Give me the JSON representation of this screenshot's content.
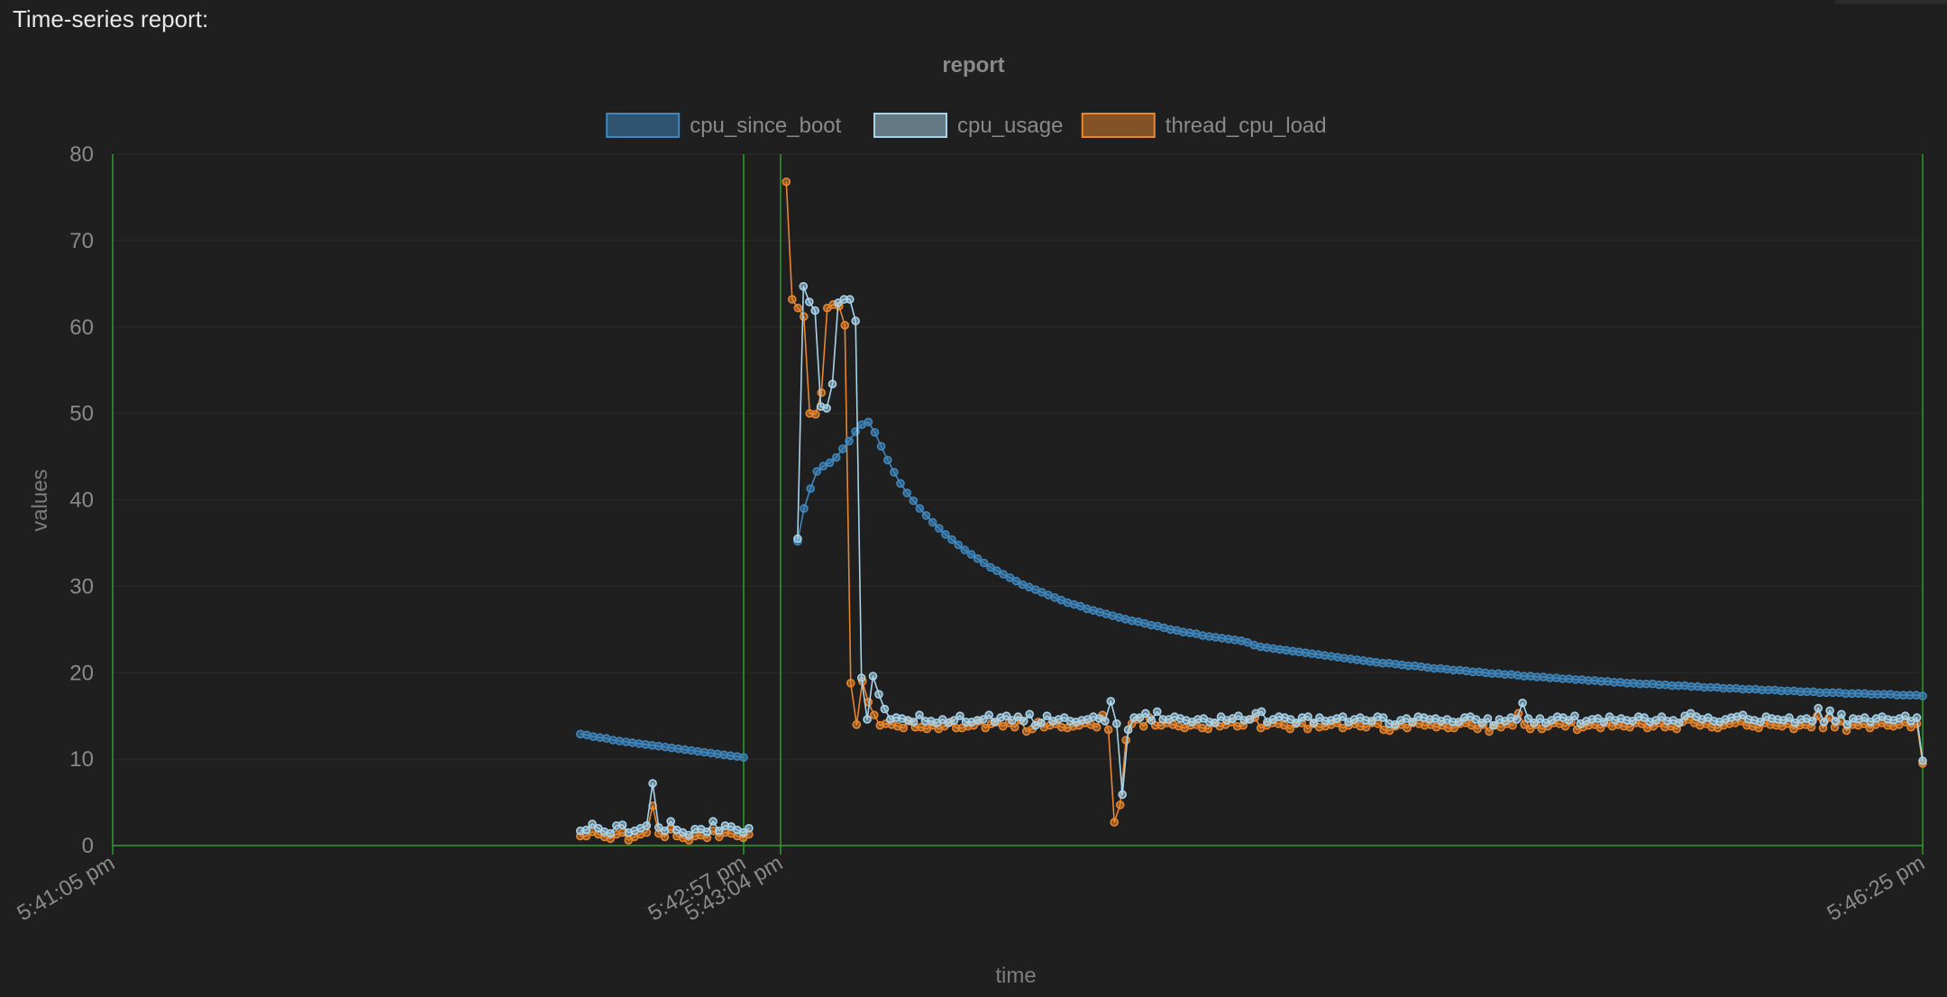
{
  "header": {
    "title": "Time-series report:"
  },
  "colors": {
    "background": "#1f1f1f",
    "grid": "#2c2c2c",
    "axis_green": "#2aa02a",
    "text_muted": "#8a8a8a",
    "cpu_since_boot": "#3f88bf",
    "cpu_usage": "#a8d3ea",
    "thread_cpu_load": "#e8862e"
  },
  "chart_data": {
    "type": "line",
    "title": "report",
    "xlabel": "time",
    "ylabel": "values",
    "ylim": [
      0,
      80
    ],
    "yticks": [
      0,
      10,
      20,
      30,
      40,
      50,
      60,
      70,
      80
    ],
    "xrange": [
      "5:41:05 pm",
      "5:46:25 pm"
    ],
    "xticks": [
      "5:41:05 pm",
      "5:42:57 pm",
      "5:43:04 pm",
      "5:46:25 pm"
    ],
    "grid": true,
    "legend_position": "top-center",
    "gap": {
      "from": "5:42:57 pm",
      "to": "5:43:04 pm"
    },
    "series": [
      {
        "name": "cpu_since_boot",
        "color": "#3f88bf",
        "segments": [
          {
            "start": "5:42:28 pm",
            "end": "5:42:57 pm",
            "values": [
              12.9,
              12.8,
              12.6,
              12.5,
              12.4,
              12.2,
              12.1,
              12.0,
              11.9,
              11.8,
              11.7,
              11.6,
              11.5,
              11.4,
              11.3,
              11.2,
              11.1,
              11.0,
              10.9,
              10.8,
              10.7,
              10.6,
              10.5,
              10.4,
              10.3,
              10.2
            ]
          },
          {
            "start": "5:43:07 pm",
            "end": "5:46:25 pm",
            "values": [
              35.2,
              39.0,
              41.3,
              43.3,
              43.9,
              44.3,
              44.9,
              45.9,
              46.8,
              47.9,
              48.7,
              49.0,
              47.8,
              46.2,
              44.6,
              43.2,
              41.9,
              40.8,
              39.9,
              39.0,
              38.2,
              37.4,
              36.7,
              36.0,
              35.4,
              34.8,
              34.2,
              33.7,
              33.2,
              32.7,
              32.2,
              31.8,
              31.4,
              31.0,
              30.6,
              30.2,
              29.9,
              29.6,
              29.3,
              29.0,
              28.7,
              28.4,
              28.1,
              27.9,
              27.7,
              27.4,
              27.2,
              27.0,
              26.8,
              26.6,
              26.4,
              26.2,
              26.0,
              25.9,
              25.7,
              25.5,
              25.4,
              25.2,
              25.0,
              24.9,
              24.7,
              24.6,
              24.5,
              24.3,
              24.2,
              24.1,
              24.0,
              23.9,
              23.8,
              23.7,
              23.5,
              23.2,
              23.0,
              22.9,
              22.8,
              22.7,
              22.6,
              22.5,
              22.4,
              22.3,
              22.2,
              22.1,
              22.0,
              21.9,
              21.8,
              21.7,
              21.6,
              21.5,
              21.4,
              21.3,
              21.2,
              21.1,
              21.1,
              21.0,
              20.9,
              20.8,
              20.8,
              20.7,
              20.6,
              20.5,
              20.5,
              20.4,
              20.3,
              20.3,
              20.2,
              20.1,
              20.1,
              20.0,
              19.9,
              19.9,
              19.8,
              19.8,
              19.7,
              19.6,
              19.6,
              19.5,
              19.5,
              19.4,
              19.4,
              19.3,
              19.3,
              19.2,
              19.2,
              19.1,
              19.1,
              19.0,
              19.0,
              18.9,
              18.9,
              18.8,
              18.8,
              18.7,
              18.7,
              18.7,
              18.6,
              18.6,
              18.5,
              18.5,
              18.5,
              18.4,
              18.4,
              18.3,
              18.3,
              18.3,
              18.2,
              18.2,
              18.2,
              18.1,
              18.1,
              18.1,
              18.0,
              18.0,
              18.0,
              17.9,
              17.9,
              17.9,
              17.8,
              17.8,
              17.8,
              17.7,
              17.7,
              17.7,
              17.7,
              17.6,
              17.6,
              17.6,
              17.6,
              17.5,
              17.5,
              17.5,
              17.5,
              17.4,
              17.4,
              17.4,
              17.4,
              17.3
            ]
          }
        ]
      },
      {
        "name": "cpu_usage",
        "color": "#a8d3ea",
        "segments": [
          {
            "start": "5:42:28 pm",
            "end": "5:42:58 pm",
            "values": [
              1.7,
              1.8,
              2.5,
              2.0,
              1.6,
              1.4,
              2.3,
              2.4,
              1.5,
              1.7,
              2.0,
              2.3,
              7.2,
              2.1,
              1.7,
              2.8,
              1.8,
              1.5,
              1.2,
              1.9,
              1.9,
              1.6,
              2.8,
              1.7,
              2.3,
              2.2,
              1.8,
              1.5,
              2.0
            ]
          },
          {
            "start": "5:43:07 pm",
            "end": "5:46:25 pm",
            "values": [
              35.5,
              64.7,
              62.9,
              61.9,
              50.8,
              50.6,
              53.4,
              62.8,
              63.2,
              63.2,
              60.7,
              19.4,
              14.6,
              19.6,
              17.5,
              15.8,
              14.6,
              14.8,
              14.7,
              14.5,
              14.3,
              15.1,
              14.4,
              14.4,
              14.2,
              14.6,
              14.2,
              14.5,
              15.0,
              14.3,
              14.3,
              14.5,
              14.6,
              15.1,
              14.3,
              14.8,
              15.0,
              14.5,
              14.9,
              14.4,
              15.2,
              13.9,
              14.2,
              15.0,
              14.4,
              14.6,
              14.8,
              14.4,
              14.3,
              14.5,
              14.6,
              14.9,
              14.7,
              14.4,
              16.7,
              14.1,
              5.9,
              13.4,
              14.8,
              14.8,
              15.3,
              14.5,
              15.5,
              14.6,
              14.6,
              14.9,
              14.7,
              14.5,
              14.3,
              14.6,
              14.7,
              14.3,
              14.2,
              14.9,
              14.5,
              14.7,
              15.0,
              14.5,
              14.6,
              15.3,
              15.5,
              14.3,
              14.6,
              14.9,
              14.8,
              14.6,
              14.2,
              14.8,
              14.9,
              14.2,
              14.8,
              14.4,
              14.5,
              14.7,
              14.9,
              14.3,
              14.6,
              14.8,
              14.5,
              14.4,
              14.9,
              14.8,
              14.1,
              14.0,
              14.5,
              14.7,
              14.3,
              14.9,
              14.8,
              14.6,
              14.7,
              14.4,
              14.6,
              14.3,
              14.3,
              14.8,
              14.9,
              14.6,
              14.2,
              14.7,
              13.9,
              14.6,
              14.4,
              14.8,
              14.6,
              16.5,
              14.7,
              14.2,
              14.7,
              14.2,
              14.5,
              14.9,
              14.8,
              14.5,
              15.0,
              14.1,
              14.4,
              14.6,
              14.7,
              14.3,
              14.9,
              14.5,
              14.7,
              14.5,
              14.4,
              14.9,
              14.8,
              14.3,
              14.5,
              14.9,
              14.4,
              14.5,
              14.2,
              15.0,
              15.3,
              14.9,
              14.6,
              14.8,
              14.4,
              14.3,
              14.6,
              14.8,
              14.9,
              15.1,
              14.6,
              14.5,
              14.3,
              14.9,
              14.7,
              14.6,
              14.5,
              14.8,
              14.2,
              14.6,
              14.7,
              14.4,
              15.9,
              14.3,
              15.6,
              14.4,
              15.2,
              14.0,
              14.7,
              14.6,
              14.8,
              14.3,
              14.7,
              14.9,
              14.6,
              14.5,
              14.7,
              15.0,
              14.4,
              14.8,
              9.8
            ]
          }
        ]
      },
      {
        "name": "thread_cpu_load",
        "color": "#e8862e",
        "segments": [
          {
            "start": "5:42:28 pm",
            "end": "5:42:58 pm",
            "values": [
              1.1,
              1.1,
              1.6,
              1.3,
              1.0,
              0.8,
              1.3,
              1.5,
              0.6,
              1.0,
              1.3,
              1.5,
              4.6,
              1.4,
              1.0,
              1.9,
              1.1,
              0.9,
              0.6,
              1.1,
              1.2,
              0.9,
              1.7,
              1.0,
              1.5,
              1.4,
              1.1,
              0.9,
              1.3
            ]
          },
          {
            "start": "5:43:05 pm",
            "end": "5:46:25 pm",
            "values": [
              76.8,
              63.2,
              62.2,
              61.2,
              50.0,
              49.9,
              52.4,
              62.2,
              62.6,
              62.4,
              60.2,
              18.8,
              14.0,
              19.0,
              16.6,
              15.1,
              13.9,
              14.1,
              14.0,
              13.8,
              13.6,
              14.4,
              13.7,
              13.7,
              13.5,
              13.9,
              13.5,
              13.8,
              14.3,
              13.6,
              13.6,
              13.8,
              13.9,
              14.4,
              13.6,
              14.1,
              14.3,
              13.8,
              14.2,
              13.7,
              14.5,
              13.2,
              13.5,
              14.3,
              13.7,
              13.9,
              14.1,
              13.7,
              13.6,
              13.8,
              13.9,
              14.2,
              14.0,
              13.7,
              15.1,
              13.4,
              2.7,
              4.7,
              12.2,
              14.1,
              14.6,
              13.8,
              14.8,
              13.9,
              13.9,
              14.2,
              14.0,
              13.8,
              13.6,
              13.9,
              14.0,
              13.6,
              13.5,
              14.2,
              13.8,
              14.0,
              14.3,
              13.8,
              13.9,
              14.6,
              14.8,
              13.6,
              13.9,
              14.2,
              14.1,
              13.9,
              13.5,
              14.1,
              14.2,
              13.5,
              14.1,
              13.7,
              13.8,
              14.0,
              14.2,
              13.6,
              13.9,
              14.1,
              13.8,
              13.7,
              14.2,
              14.1,
              13.4,
              13.3,
              13.8,
              14.0,
              13.6,
              14.2,
              14.1,
              13.9,
              14.0,
              13.7,
              13.9,
              13.6,
              13.6,
              14.1,
              14.2,
              13.9,
              13.5,
              14.0,
              13.2,
              13.9,
              13.7,
              14.1,
              13.9,
              15.3,
              14.0,
              13.5,
              14.0,
              13.5,
              13.8,
              14.2,
              14.1,
              13.8,
              14.3,
              13.4,
              13.7,
              13.9,
              14.0,
              13.6,
              14.2,
              13.8,
              14.0,
              13.8,
              13.7,
              14.2,
              14.1,
              13.6,
              13.8,
              14.2,
              13.7,
              13.8,
              13.5,
              14.3,
              14.6,
              14.2,
              13.9,
              14.1,
              13.7,
              13.6,
              13.9,
              14.1,
              14.2,
              14.4,
              13.9,
              13.8,
              13.6,
              14.2,
              14.0,
              13.9,
              13.8,
              14.1,
              13.5,
              13.9,
              14.0,
              13.7,
              15.0,
              13.6,
              14.8,
              13.7,
              14.4,
              13.3,
              14.0,
              13.9,
              14.1,
              13.6,
              14.0,
              14.2,
              13.9,
              13.8,
              14.0,
              14.3,
              13.7,
              14.1,
              9.5
            ]
          }
        ]
      }
    ]
  }
}
